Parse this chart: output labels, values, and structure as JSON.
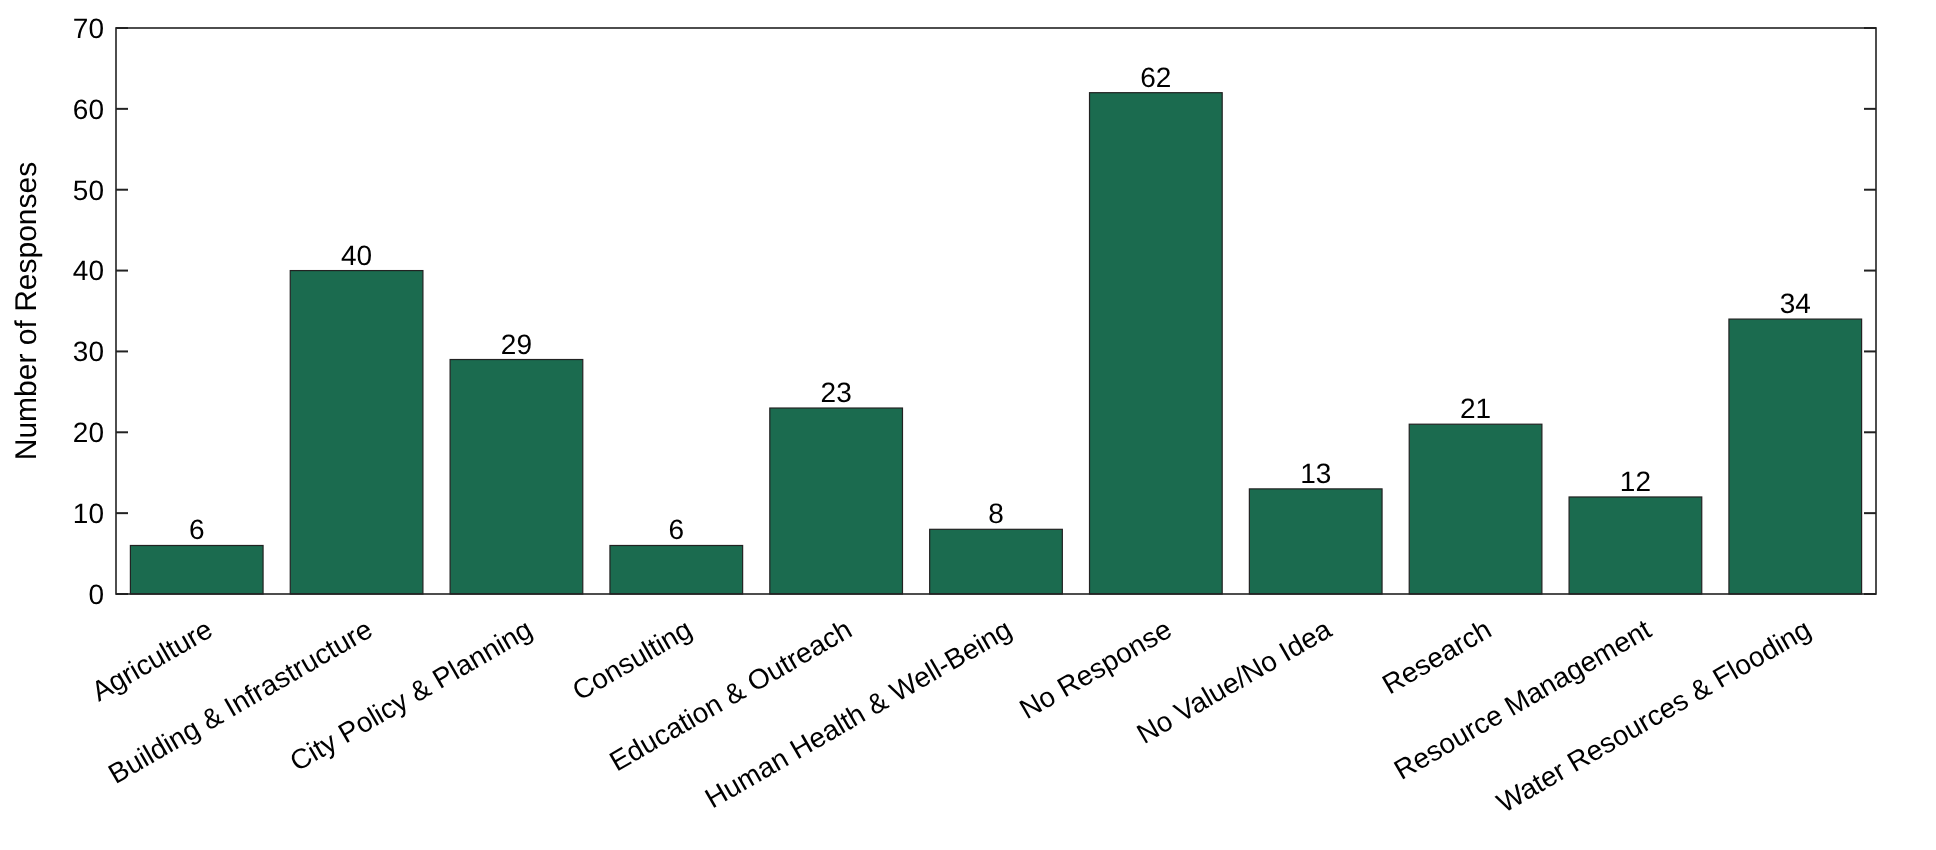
{
  "chart_data": {
    "type": "bar",
    "ylabel": "Number of Responses",
    "categories": [
      "Agriculture",
      "Building & Infrastructure",
      "City Policy & Planning",
      "Consulting",
      "Education & Outreach",
      "Human Health & Well-Being",
      "No Response",
      "No Value/No Idea",
      "Research",
      "Resource Management",
      "Water Resources & Flooding"
    ],
    "values": [
      6,
      40,
      29,
      6,
      23,
      8,
      62,
      13,
      21,
      12,
      34
    ],
    "color": "#1b6b4f",
    "ylim": [
      0,
      70
    ],
    "yticks": [
      0,
      10,
      20,
      30,
      40,
      50,
      60,
      70
    ],
    "data_labels": true,
    "grid": false
  }
}
